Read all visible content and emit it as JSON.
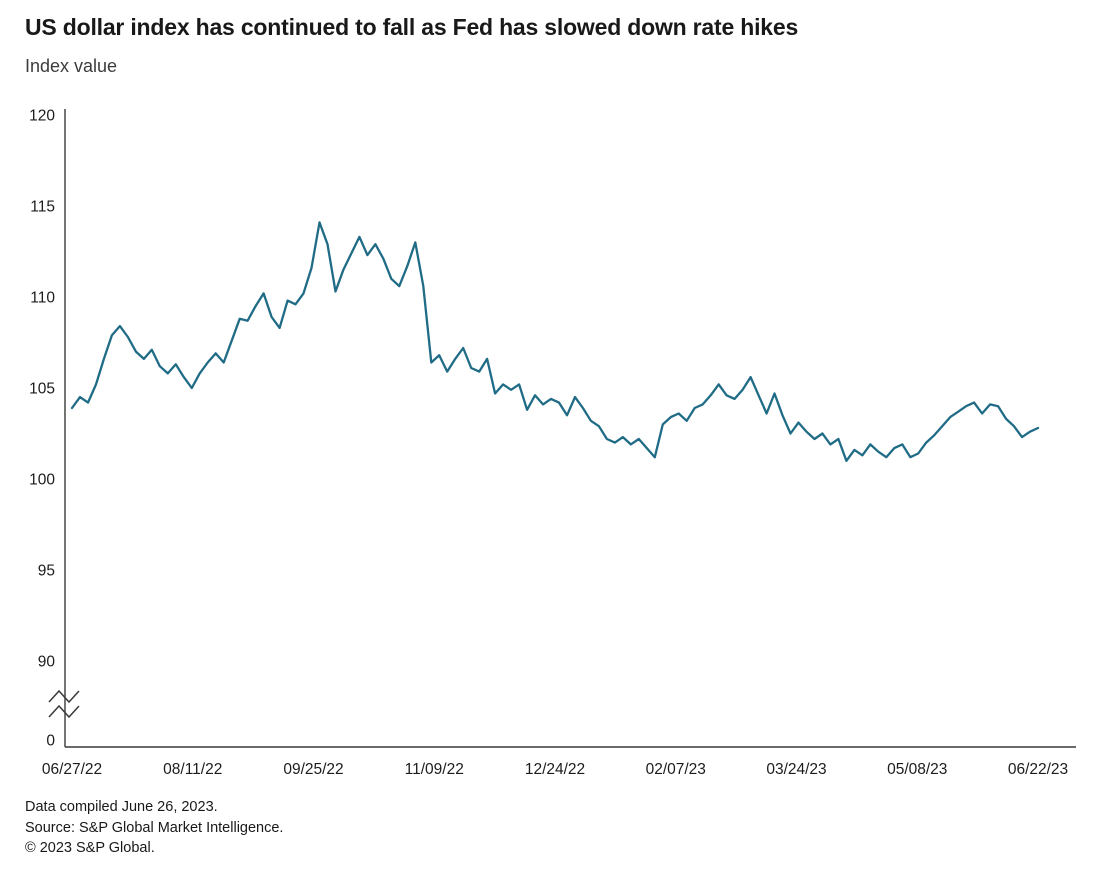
{
  "footer": {
    "compiled": "Data compiled June 26, 2023.",
    "source": "Source: S&P Global Market Intelligence.",
    "copyright": "© 2023 S&P Global."
  },
  "chart_data": {
    "type": "line",
    "title": "US dollar index has continued to fall as Fed has slowed down rate hikes",
    "ylabel": "Index value",
    "xlabel": "",
    "grid": false,
    "legend": "none",
    "line_color": "#206c86",
    "axis_color": "#3a3a3a",
    "x_ticks": [
      "06/27/22",
      "08/11/22",
      "09/25/22",
      "11/09/22",
      "12/24/22",
      "02/07/23",
      "03/24/23",
      "05/08/23",
      "06/22/23"
    ],
    "y_ticks_upper": [
      120,
      115,
      110,
      105,
      100,
      95,
      90
    ],
    "y_tick_zero": "0",
    "y_axis_break_between": [
      0,
      90
    ],
    "ylim_upper_segment": [
      90,
      120
    ],
    "series": [
      {
        "name": "US dollar index",
        "color": "#206c86",
        "x_start": "06/27/22",
        "x_end": "06/22/23",
        "x_spacing": "uniform, approx every 3 days from 06/27/22 to 06/22/23",
        "values": [
          103.9,
          104.5,
          104.2,
          105.2,
          106.6,
          107.9,
          108.4,
          107.8,
          107.0,
          106.6,
          107.1,
          106.2,
          105.8,
          106.3,
          105.6,
          105.0,
          105.8,
          106.4,
          106.9,
          106.4,
          107.6,
          108.8,
          108.7,
          109.5,
          110.2,
          108.9,
          108.3,
          109.8,
          109.6,
          110.2,
          111.6,
          114.1,
          112.9,
          110.3,
          111.5,
          112.4,
          113.3,
          112.3,
          112.9,
          112.1,
          111.0,
          110.6,
          111.7,
          113.0,
          110.6,
          106.4,
          106.8,
          105.9,
          106.6,
          107.2,
          106.1,
          105.9,
          106.6,
          104.7,
          105.2,
          104.9,
          105.2,
          103.8,
          104.6,
          104.1,
          104.4,
          104.2,
          103.5,
          104.5,
          103.9,
          103.2,
          102.9,
          102.2,
          102.0,
          102.3,
          101.9,
          102.2,
          101.7,
          101.2,
          103.0,
          103.4,
          103.6,
          103.2,
          103.9,
          104.1,
          104.6,
          105.2,
          104.6,
          104.4,
          104.9,
          105.6,
          104.6,
          103.6,
          104.7,
          103.5,
          102.5,
          103.1,
          102.6,
          102.2,
          102.5,
          101.9,
          102.2,
          101.0,
          101.6,
          101.3,
          101.9,
          101.5,
          101.2,
          101.7,
          101.9,
          101.2,
          101.4,
          102.0,
          102.4,
          102.9,
          103.4,
          103.7,
          104.0,
          104.2,
          103.6,
          104.1,
          104.0,
          103.3,
          102.9,
          102.3,
          102.6,
          102.8
        ]
      }
    ]
  }
}
